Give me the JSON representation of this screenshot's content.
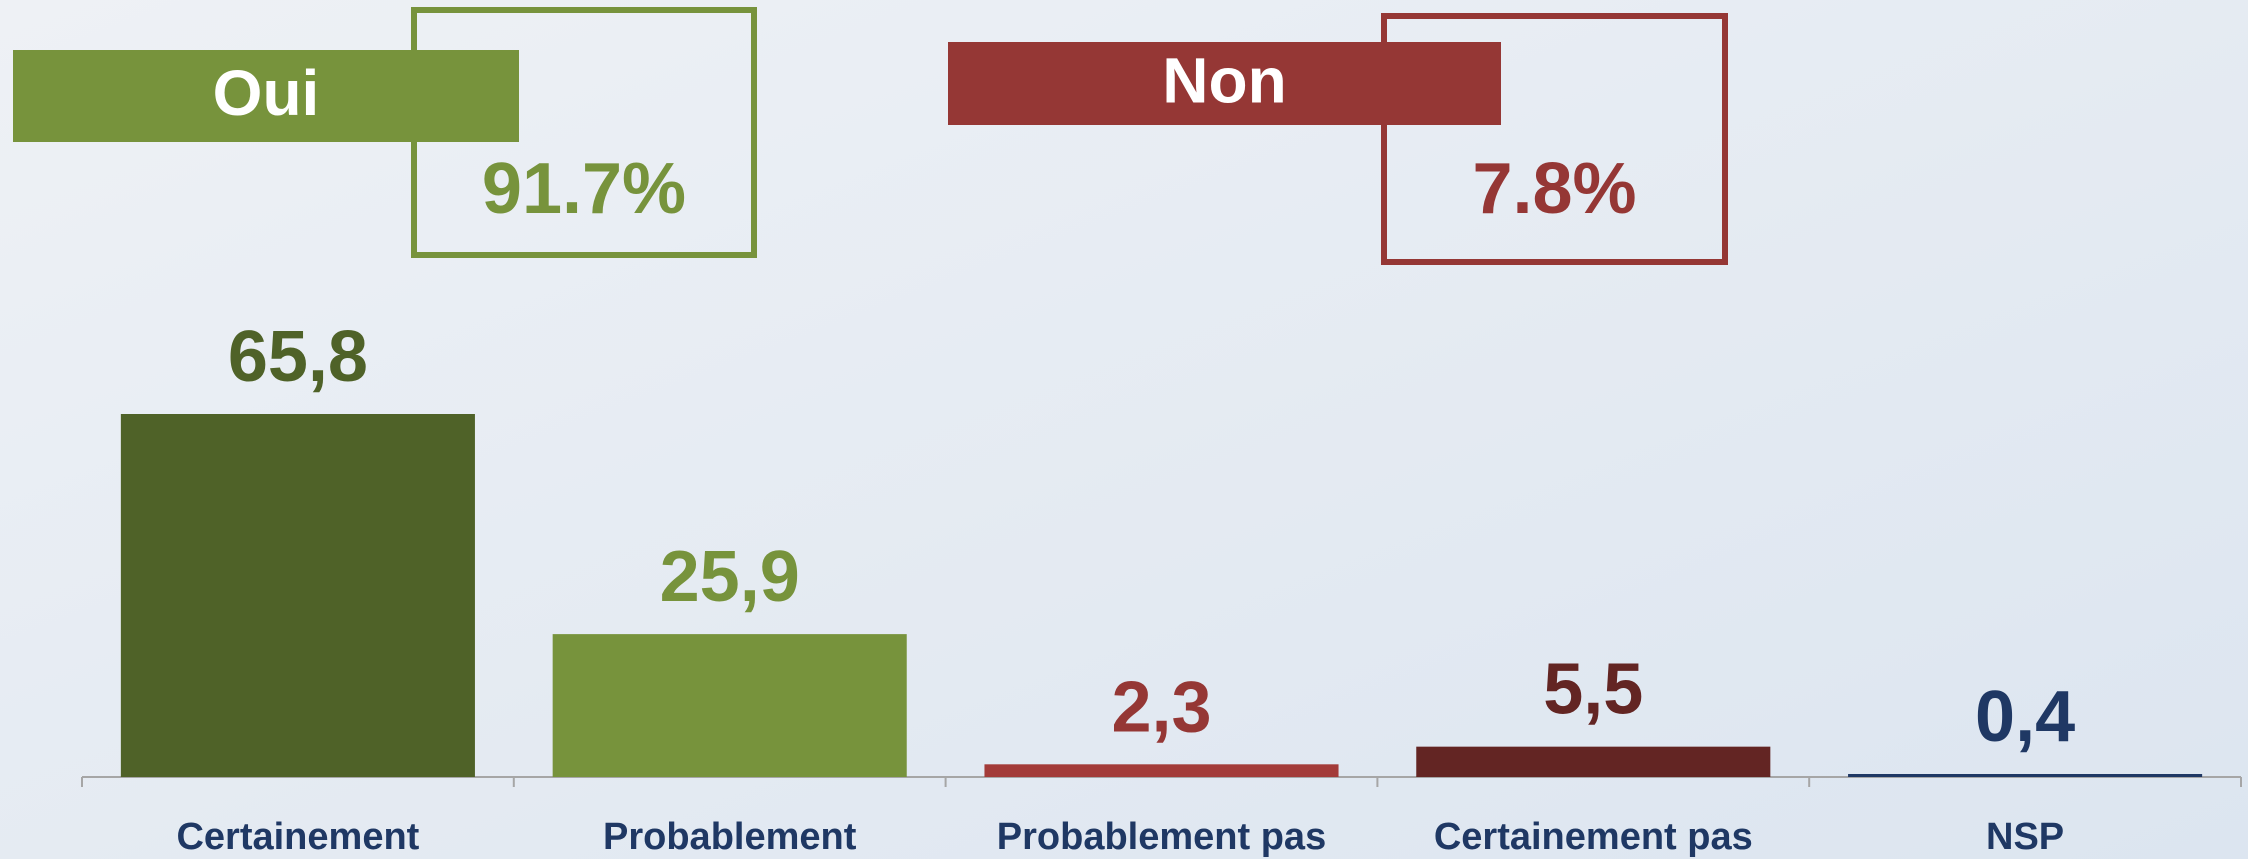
{
  "chart_data": {
    "type": "bar",
    "categories": [
      "Certainement",
      "Probablement",
      "Probablement pas",
      "Certainement pas",
      "NSP"
    ],
    "values": [
      65.8,
      25.9,
      2.3,
      5.5,
      0.4
    ],
    "value_labels": [
      "65,8",
      "25,9",
      "2,3",
      "5,5",
      "0,4"
    ],
    "colors": [
      "#4f6228",
      "#77933c",
      "#a33b39",
      "#632523",
      "#1f3864"
    ],
    "label_colors": [
      "#4f6228",
      "#77933c",
      "#953735",
      "#632523",
      "#1f3864"
    ],
    "annotations": [
      {
        "title": "Oui",
        "value": 91.7,
        "value_label": "91.7%",
        "color": "#77933c"
      },
      {
        "title": "Non",
        "value": 7.8,
        "value_label": "7.8%",
        "color": "#953735"
      }
    ]
  }
}
